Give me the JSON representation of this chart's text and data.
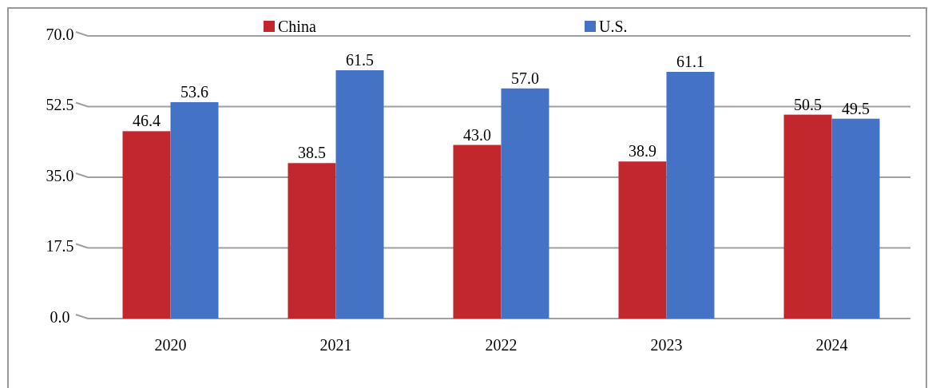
{
  "chart_data": {
    "type": "bar",
    "categories": [
      "2020",
      "2021",
      "2022",
      "2023",
      "2024"
    ],
    "series": [
      {
        "name": "China",
        "color": "#c0282d",
        "values": [
          46.4,
          38.5,
          43.0,
          38.9,
          50.5
        ],
        "value_labels": [
          "46.4",
          "38.5",
          "43.0",
          "38.9",
          "50.5"
        ]
      },
      {
        "name": "U.S.",
        "color": "#4472c4",
        "values": [
          53.6,
          61.5,
          57.0,
          61.1,
          49.5
        ],
        "value_labels": [
          "53.6",
          "61.5",
          "57.0",
          "61.1",
          "49.5"
        ]
      }
    ],
    "ylim": [
      0,
      70
    ],
    "yticks": [
      {
        "value": 0,
        "label": "0.0"
      },
      {
        "value": 17.5,
        "label": "17.5"
      },
      {
        "value": 35,
        "label": "35.0"
      },
      {
        "value": 52.5,
        "label": "52.5"
      },
      {
        "value": 70,
        "label": "70.0"
      }
    ],
    "grid": "y",
    "legend": "top"
  }
}
